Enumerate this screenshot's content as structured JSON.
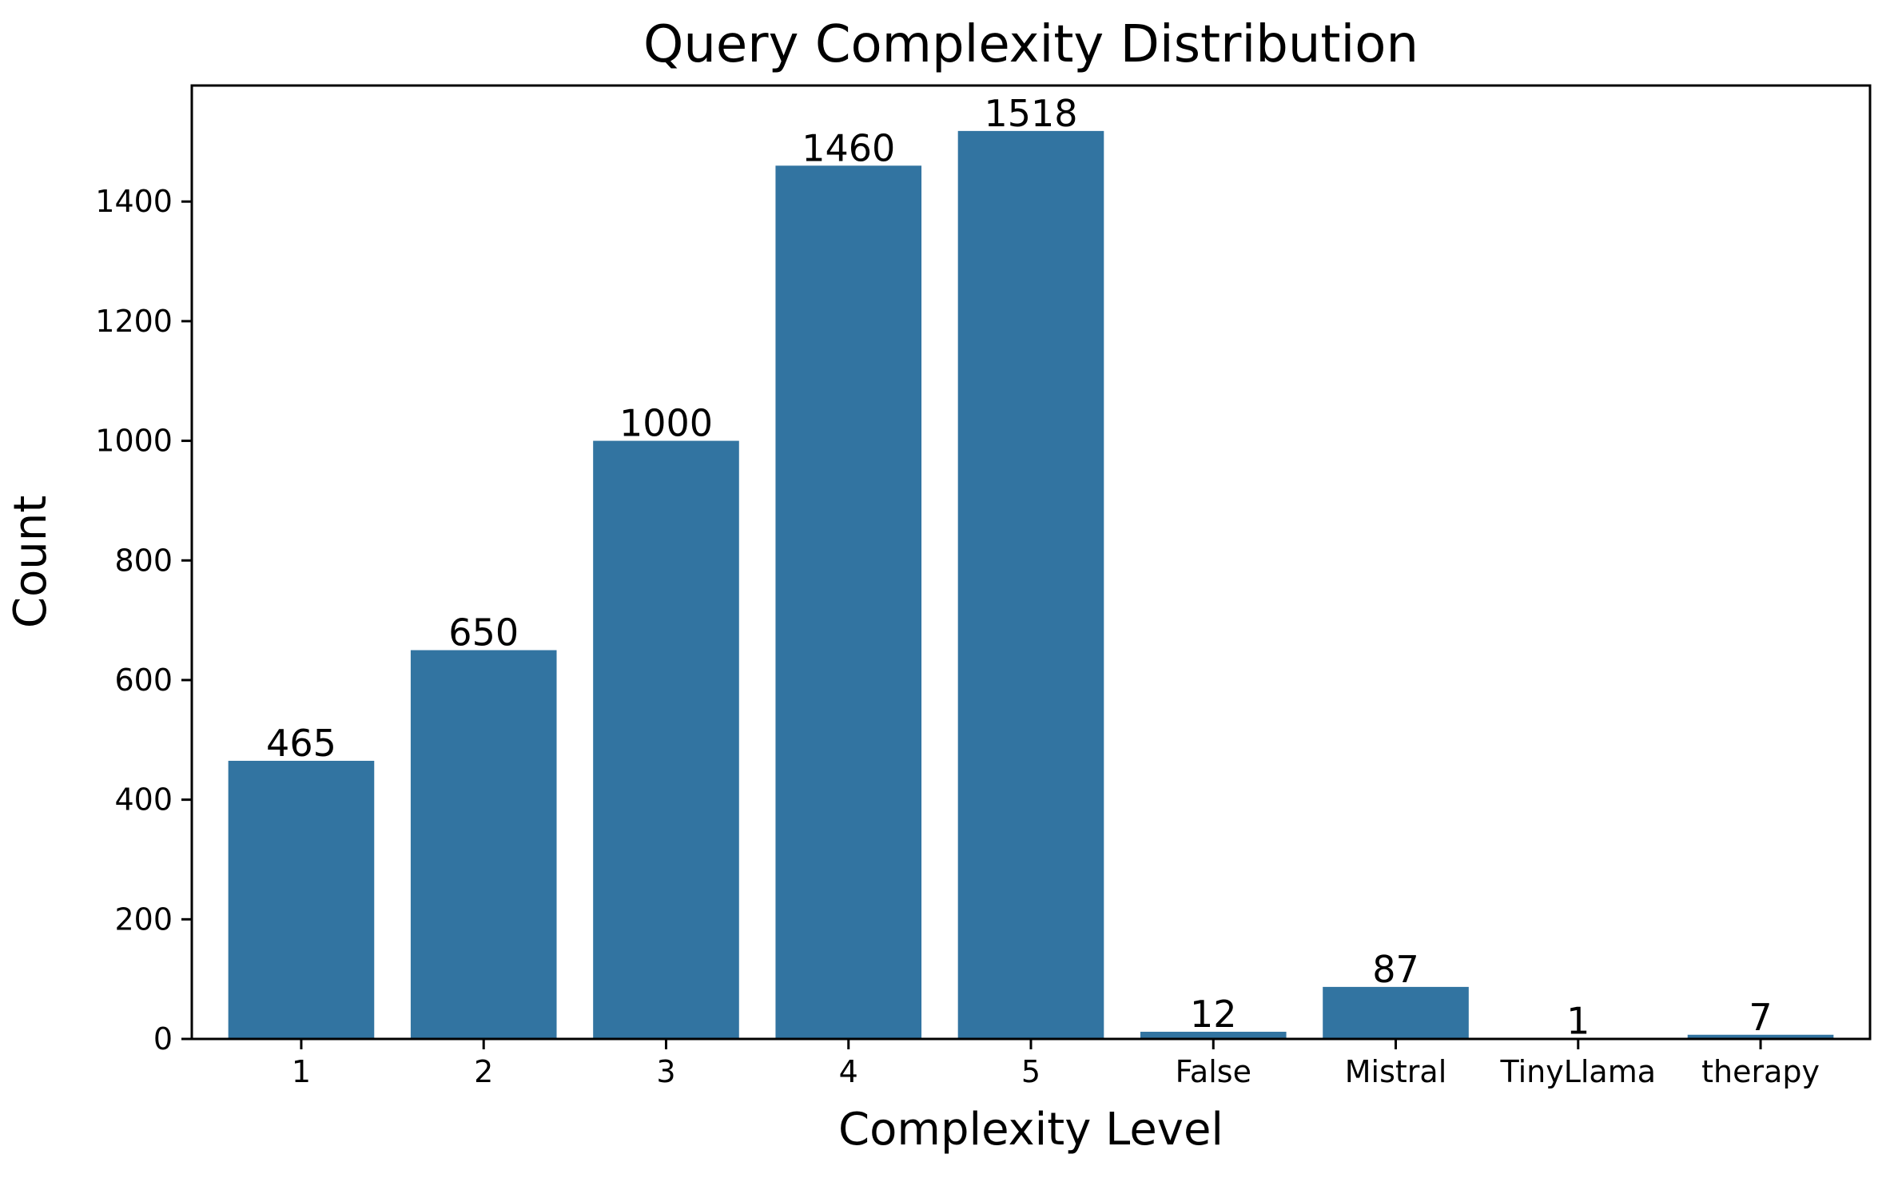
{
  "chart_data": {
    "type": "bar",
    "title": "Query Complexity Distribution",
    "xlabel": "Complexity Level",
    "ylabel": "Count",
    "categories": [
      "1",
      "2",
      "3",
      "4",
      "5",
      "False",
      "Mistral",
      "TinyLlama",
      "therapy"
    ],
    "values": [
      465,
      650,
      1000,
      1460,
      1518,
      12,
      87,
      1,
      7
    ],
    "data_labels": [
      "465",
      "650",
      "1000",
      "1460",
      "1518",
      "12",
      "87",
      "1",
      "7"
    ],
    "ylim": [
      0,
      1594
    ],
    "yticks": [
      0,
      200,
      400,
      600,
      800,
      1000,
      1200,
      1400
    ],
    "grid": false,
    "bar_color": "#3274a1"
  }
}
